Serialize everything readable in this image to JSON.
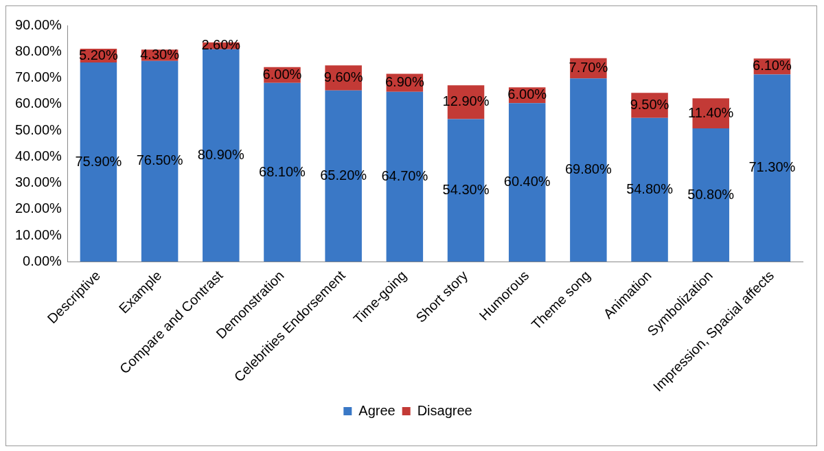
{
  "chart_data": {
    "type": "bar",
    "stacked": true,
    "categories": [
      "Descriptive",
      "Example",
      "Compare and Contrast",
      "Demonstration",
      "Celebrities Endorsement",
      "Time-going",
      "Short story",
      "Humorous",
      "Theme song",
      "Animation",
      "Symbolization",
      "Impression, Spacial affects"
    ],
    "series": [
      {
        "name": "Agree",
        "color": "#3a78c6",
        "values": [
          75.9,
          76.5,
          80.9,
          68.1,
          65.2,
          64.7,
          54.3,
          60.4,
          69.8,
          54.8,
          50.8,
          71.3
        ],
        "value_labels": [
          "75.90%",
          "76.50%",
          "80.90%",
          "68.10%",
          "65.20%",
          "64.70%",
          "54.30%",
          "60.40%",
          "69.80%",
          "54.80%",
          "50.80%",
          "71.30%"
        ]
      },
      {
        "name": "Disagree",
        "color": "#c33a36",
        "values": [
          5.2,
          4.3,
          2.6,
          6.0,
          9.6,
          6.9,
          12.9,
          6.0,
          7.7,
          9.5,
          11.4,
          6.1
        ],
        "value_labels": [
          "5.20%",
          "4.30%",
          "2.60%",
          "6.00%",
          "9.60%",
          "6.90%",
          "12.90%",
          "6.00%",
          "7.70%",
          "9.50%",
          "11.40%",
          "6.10%"
        ]
      }
    ],
    "ylim": [
      0,
      90
    ],
    "yticks": [
      {
        "value": 0,
        "label": "0.00%"
      },
      {
        "value": 10,
        "label": "10.00%"
      },
      {
        "value": 20,
        "label": "20.00%"
      },
      {
        "value": 30,
        "label": "30.00%"
      },
      {
        "value": 40,
        "label": "40.00%"
      },
      {
        "value": 50,
        "label": "50.00%"
      },
      {
        "value": 60,
        "label": "60.00%"
      },
      {
        "value": 70,
        "label": "70.00%"
      },
      {
        "value": 80,
        "label": "80.00%"
      },
      {
        "value": 90,
        "label": "90.00%"
      }
    ],
    "grid": false,
    "legend": "bottom"
  }
}
